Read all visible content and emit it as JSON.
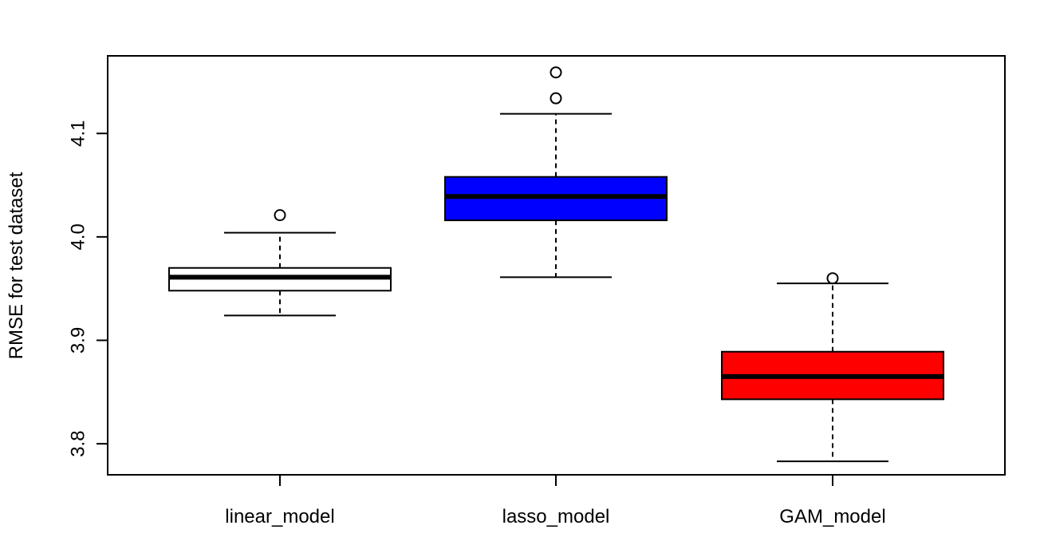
{
  "chart_data": {
    "type": "box",
    "categories": [
      "linear_model",
      "lasso_model",
      "GAM_model"
    ],
    "ylabel": "RMSE for test dataset",
    "xlabel": "",
    "title": "",
    "ylim": [
      3.77,
      4.175
    ],
    "yticks": [
      "3.8",
      "3.9",
      "4.0",
      "4.1"
    ],
    "grid": false,
    "boxes": [
      {
        "name": "linear_model",
        "fill": "#ffffff",
        "whisker_low": 3.924,
        "q1": 3.948,
        "median": 3.961,
        "q3": 3.97,
        "whisker_high": 4.004,
        "outliers": [
          4.021
        ]
      },
      {
        "name": "lasso_model",
        "fill": "#0000ff",
        "whisker_low": 3.961,
        "q1": 4.016,
        "median": 4.039,
        "q3": 4.058,
        "whisker_high": 4.119,
        "outliers": [
          4.134,
          4.159
        ]
      },
      {
        "name": "GAM_model",
        "fill": "#ff0000",
        "whisker_low": 3.783,
        "q1": 3.843,
        "median": 3.865,
        "q3": 3.889,
        "whisker_high": 3.955,
        "outliers": [
          3.96
        ]
      }
    ]
  }
}
